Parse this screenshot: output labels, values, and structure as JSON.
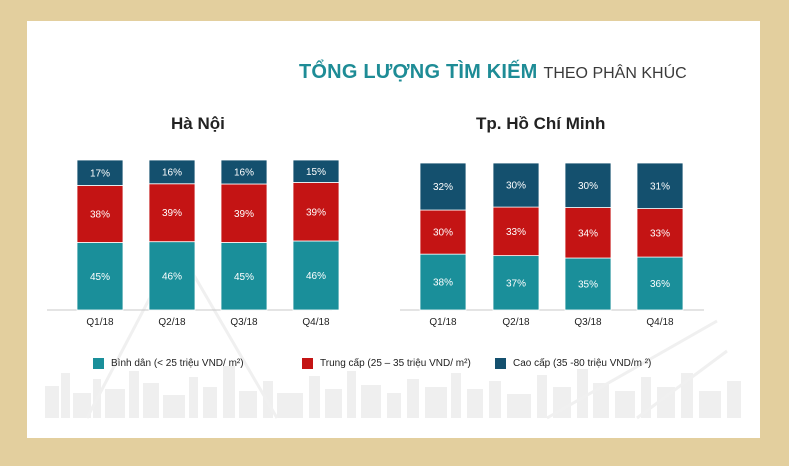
{
  "title": {
    "main": "TỔNG LƯỢNG TÌM KIẾM",
    "sub": "THEO PHÂN KHÚC"
  },
  "colors": {
    "binh_dan": "#1a8f9a",
    "trung_cap": "#c41414",
    "cao_cap": "#14506e",
    "frame": "#e3cf9e"
  },
  "legend": [
    {
      "label": "Bình dân  (< 25 triệu VND/   m²)",
      "color": "#1a8f9a"
    },
    {
      "label": "Trung cấp (25   – 35 triệu VND/  m²)",
      "color": "#c41414"
    },
    {
      "label": "Cao cấp (35  -80 triệu VND/m  ²)",
      "color": "#14506e"
    }
  ],
  "chart_data": [
    {
      "type": "bar",
      "stacked": true,
      "title": "Hà Nội",
      "categories": [
        "Q1/18",
        "Q2/18",
        "Q3/18",
        "Q4/18"
      ],
      "series": [
        {
          "name": "Bình dân  (< 25 triệu VND/   m²)",
          "values": [
            45,
            46,
            45,
            46
          ],
          "labels": [
            "45%",
            "46%",
            "45%",
            "46%"
          ]
        },
        {
          "name": "Trung cấp (25   – 35 triệu VND/  m²)",
          "values": [
            38,
            39,
            39,
            39
          ],
          "labels": [
            "38%",
            "39%",
            "39%",
            "39%"
          ]
        },
        {
          "name": "Cao cấp (35  -80 triệu VND/m  ²)",
          "values": [
            17,
            16,
            16,
            15
          ],
          "labels": [
            "17%",
            "16%",
            "16%",
            "15%"
          ]
        }
      ]
    },
    {
      "type": "bar",
      "stacked": true,
      "title": "Tp. Hồ Chí Minh",
      "categories": [
        "Q1/18",
        "Q2/18",
        "Q3/18",
        "Q4/18"
      ],
      "series": [
        {
          "name": "Bình dân  (< 25 triệu VND/   m²)",
          "values": [
            38,
            37,
            35,
            36
          ],
          "labels": [
            "38%",
            "37%",
            "35%",
            "36%"
          ]
        },
        {
          "name": "Trung cấp (25   – 35 triệu VND/  m²)",
          "values": [
            30,
            33,
            34,
            33
          ],
          "labels": [
            "30%",
            "33%",
            "34%",
            "33%"
          ]
        },
        {
          "name": "Cao cấp (35  -80 triệu VND/m  ²)",
          "values": [
            32,
            30,
            30,
            31
          ],
          "labels": [
            "32%",
            "30%",
            "30%",
            "31%"
          ]
        }
      ]
    }
  ]
}
